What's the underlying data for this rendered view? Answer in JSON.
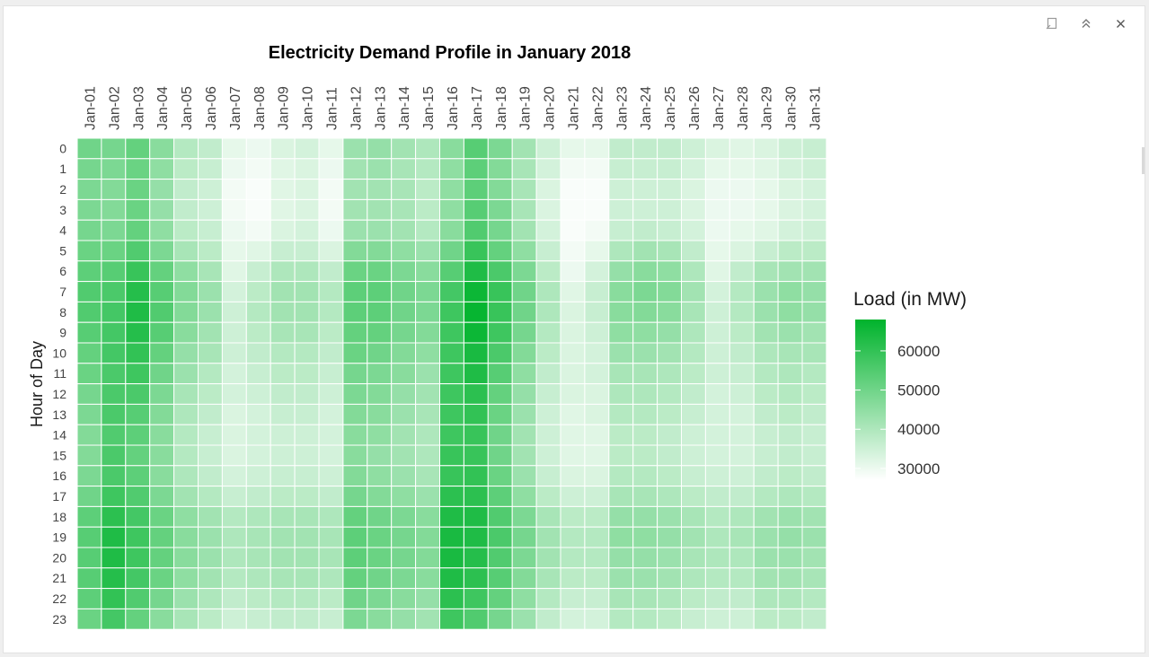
{
  "window": {
    "tools": [
      {
        "icon": "popout-icon"
      },
      {
        "icon": "collapse-icon"
      },
      {
        "icon": "close-icon"
      }
    ]
  },
  "chart_data": {
    "type": "heatmap",
    "title": "Electricity Demand Profile in January 2018",
    "xlabel": "",
    "ylabel": "Hour of Day",
    "x": [
      "Jan-01",
      "Jan-02",
      "Jan-03",
      "Jan-04",
      "Jan-05",
      "Jan-06",
      "Jan-07",
      "Jan-08",
      "Jan-09",
      "Jan-10",
      "Jan-11",
      "Jan-12",
      "Jan-13",
      "Jan-14",
      "Jan-15",
      "Jan-16",
      "Jan-17",
      "Jan-18",
      "Jan-19",
      "Jan-20",
      "Jan-21",
      "Jan-22",
      "Jan-23",
      "Jan-24",
      "Jan-25",
      "Jan-26",
      "Jan-27",
      "Jan-28",
      "Jan-29",
      "Jan-30",
      "Jan-31"
    ],
    "y": [
      "0",
      "1",
      "2",
      "3",
      "4",
      "5",
      "6",
      "7",
      "8",
      "9",
      "10",
      "11",
      "12",
      "13",
      "14",
      "15",
      "16",
      "17",
      "18",
      "19",
      "20",
      "21",
      "22",
      "23"
    ],
    "x_axis_position": "top",
    "values": [
      [
        50000,
        49000,
        52000,
        46000,
        39000,
        37000,
        31000,
        30000,
        33000,
        34000,
        31000,
        43000,
        44000,
        42000,
        40000,
        46000,
        54000,
        48000,
        42000,
        35000,
        31000,
        31000,
        37000,
        37000,
        37000,
        35000,
        33000,
        32000,
        33000,
        35000,
        36000
      ],
      [
        49000,
        48000,
        51000,
        45000,
        38000,
        36000,
        30000,
        29000,
        32000,
        33000,
        30000,
        42000,
        43000,
        41000,
        39000,
        45000,
        53000,
        47000,
        41000,
        34000,
        29000,
        29000,
        36000,
        36000,
        36000,
        34000,
        31000,
        31000,
        32000,
        34000,
        35000
      ],
      [
        48000,
        47000,
        51000,
        44000,
        37000,
        35000,
        29000,
        28000,
        32000,
        33000,
        29000,
        42000,
        42000,
        41000,
        38000,
        45000,
        53000,
        47000,
        41000,
        33000,
        28000,
        28000,
        35000,
        35000,
        35000,
        33000,
        30000,
        30000,
        31000,
        33000,
        34000
      ],
      [
        48000,
        47000,
        51000,
        44000,
        37000,
        35000,
        29000,
        28000,
        32000,
        33000,
        29000,
        42000,
        42000,
        41000,
        38000,
        45000,
        54000,
        48000,
        41000,
        33000,
        28000,
        28000,
        35000,
        35000,
        35000,
        33000,
        30000,
        30000,
        31000,
        33000,
        34000
      ],
      [
        49000,
        48000,
        52000,
        45000,
        38000,
        36000,
        30000,
        29000,
        33000,
        34000,
        30000,
        43000,
        43000,
        42000,
        39000,
        46000,
        55000,
        49000,
        42000,
        34000,
        28000,
        29000,
        36000,
        37000,
        36000,
        34000,
        30000,
        31000,
        32000,
        34000,
        35000
      ],
      [
        51000,
        51000,
        55000,
        48000,
        41000,
        38000,
        31000,
        32000,
        36000,
        36000,
        33000,
        47000,
        47000,
        45000,
        43000,
        50000,
        59000,
        52000,
        45000,
        36000,
        29000,
        31000,
        40000,
        42000,
        41000,
        37000,
        31000,
        33000,
        36000,
        38000,
        38000
      ],
      [
        53000,
        54000,
        59000,
        52000,
        45000,
        41000,
        32000,
        36000,
        40000,
        40000,
        37000,
        51000,
        51000,
        48000,
        46000,
        54000,
        63000,
        56000,
        48000,
        38000,
        30000,
        34000,
        44000,
        46000,
        45000,
        40000,
        32000,
        37000,
        41000,
        42000,
        42000
      ],
      [
        55000,
        56000,
        62000,
        54000,
        47000,
        43000,
        34000,
        38000,
        42000,
        42000,
        39000,
        53000,
        53000,
        50000,
        48000,
        57000,
        66000,
        59000,
        50000,
        40000,
        32000,
        36000,
        46000,
        48000,
        47000,
        42000,
        34000,
        39000,
        43000,
        45000,
        44000
      ],
      [
        55000,
        57000,
        63000,
        55000,
        47000,
        43000,
        35000,
        39000,
        42000,
        42000,
        39000,
        53000,
        53000,
        50000,
        48000,
        58000,
        67000,
        59000,
        50000,
        40000,
        33000,
        36000,
        46000,
        47000,
        46000,
        41000,
        35000,
        39000,
        43000,
        45000,
        44000
      ],
      [
        54000,
        57000,
        62000,
        54000,
        46000,
        42000,
        35000,
        38000,
        41000,
        41000,
        38000,
        52000,
        52000,
        49000,
        47000,
        58000,
        66000,
        58000,
        49000,
        39000,
        33000,
        35000,
        45000,
        45000,
        44000,
        40000,
        35000,
        38000,
        42000,
        43000,
        42000
      ],
      [
        52000,
        57000,
        60000,
        52000,
        44000,
        41000,
        35000,
        37000,
        39000,
        39000,
        37000,
        51000,
        50000,
        47000,
        45000,
        58000,
        64000,
        56000,
        47000,
        38000,
        33000,
        34000,
        43000,
        43000,
        42000,
        39000,
        35000,
        37000,
        40000,
        41000,
        41000
      ],
      [
        51000,
        56000,
        58000,
        50000,
        43000,
        39000,
        34000,
        36000,
        38000,
        38000,
        36000,
        49000,
        48000,
        46000,
        43000,
        58000,
        63000,
        54000,
        45000,
        37000,
        33000,
        34000,
        41000,
        41000,
        40000,
        38000,
        35000,
        36000,
        39000,
        40000,
        39000
      ],
      [
        49000,
        56000,
        56000,
        48000,
        41000,
        38000,
        34000,
        35000,
        37000,
        37000,
        35000,
        48000,
        47000,
        44000,
        42000,
        58000,
        61000,
        52000,
        44000,
        36000,
        33000,
        33000,
        40000,
        40000,
        39000,
        37000,
        34000,
        35000,
        38000,
        39000,
        38000
      ],
      [
        48000,
        56000,
        54000,
        47000,
        40000,
        37000,
        33000,
        34000,
        36000,
        36000,
        34000,
        47000,
        46000,
        43000,
        41000,
        58000,
        60000,
        51000,
        43000,
        35000,
        32000,
        33000,
        39000,
        39000,
        38000,
        36000,
        34000,
        34000,
        37000,
        38000,
        37000
      ],
      [
        47000,
        55000,
        53000,
        46000,
        39000,
        36000,
        33000,
        34000,
        35000,
        35000,
        34000,
        46000,
        45000,
        42000,
        40000,
        58000,
        59000,
        50000,
        42000,
        35000,
        32000,
        32000,
        38000,
        38000,
        37000,
        35000,
        34000,
        34000,
        36000,
        37000,
        36000
      ],
      [
        47000,
        56000,
        52000,
        46000,
        39000,
        36000,
        33000,
        34000,
        35000,
        35000,
        34000,
        46000,
        44000,
        42000,
        40000,
        59000,
        59000,
        50000,
        42000,
        35000,
        32000,
        32000,
        38000,
        38000,
        37000,
        35000,
        34000,
        34000,
        36000,
        37000,
        36000
      ],
      [
        48000,
        56000,
        53000,
        46000,
        40000,
        37000,
        34000,
        35000,
        36000,
        36000,
        35000,
        47000,
        45000,
        43000,
        41000,
        59000,
        60000,
        51000,
        43000,
        36000,
        33000,
        33000,
        39000,
        39000,
        38000,
        36000,
        35000,
        35000,
        37000,
        38000,
        37000
      ],
      [
        50000,
        58000,
        55000,
        48000,
        42000,
        39000,
        36000,
        37000,
        38000,
        38000,
        37000,
        49000,
        47000,
        45000,
        43000,
        61000,
        61000,
        53000,
        45000,
        38000,
        35000,
        35000,
        41000,
        41000,
        40000,
        38000,
        37000,
        37000,
        39000,
        40000,
        39000
      ],
      [
        53000,
        61000,
        57000,
        51000,
        45000,
        42000,
        39000,
        40000,
        41000,
        41000,
        40000,
        52000,
        50000,
        48000,
        46000,
        63000,
        63000,
        55000,
        48000,
        41000,
        38000,
        38000,
        44000,
        44000,
        43000,
        41000,
        39000,
        40000,
        42000,
        43000,
        42000
      ],
      [
        54000,
        63000,
        58000,
        52000,
        46000,
        43000,
        40000,
        41000,
        42000,
        42000,
        41000,
        53000,
        51000,
        49000,
        47000,
        64000,
        63000,
        56000,
        49000,
        42000,
        39000,
        39000,
        45000,
        45000,
        44000,
        42000,
        40000,
        41000,
        43000,
        44000,
        43000
      ],
      [
        54000,
        63000,
        58000,
        52000,
        46000,
        43000,
        40000,
        41000,
        42000,
        42000,
        41000,
        53000,
        51000,
        49000,
        47000,
        64000,
        62000,
        55000,
        48000,
        42000,
        39000,
        39000,
        44000,
        44000,
        43000,
        41000,
        40000,
        40000,
        43000,
        43000,
        42000
      ],
      [
        54000,
        62000,
        57000,
        51000,
        45000,
        42000,
        39000,
        40000,
        41000,
        41000,
        40000,
        52000,
        50000,
        48000,
        46000,
        63000,
        61000,
        54000,
        47000,
        41000,
        38000,
        38000,
        43000,
        43000,
        42000,
        40000,
        39000,
        39000,
        42000,
        42000,
        41000
      ],
      [
        53000,
        60000,
        55000,
        49000,
        43000,
        40000,
        37000,
        38000,
        39000,
        39000,
        38000,
        50000,
        48000,
        46000,
        44000,
        61000,
        58000,
        52000,
        45000,
        39000,
        36000,
        36000,
        41000,
        41000,
        40000,
        38000,
        37000,
        37000,
        40000,
        40000,
        39000
      ],
      [
        51000,
        57000,
        52000,
        46000,
        41000,
        38000,
        35000,
        36000,
        37000,
        37000,
        36000,
        48000,
        46000,
        44000,
        42000,
        58000,
        55000,
        49000,
        43000,
        37000,
        34000,
        34000,
        39000,
        39000,
        38000,
        36000,
        35000,
        35000,
        38000,
        38000,
        37000
      ]
    ],
    "color_scale": {
      "low": "#ffffff",
      "high": "#00b32c",
      "min": 27000,
      "max": 68000
    },
    "legend": {
      "title": "Load (in MW)",
      "ticks": [
        60000,
        50000,
        40000,
        30000
      ],
      "placement": "right"
    },
    "grid": false
  }
}
